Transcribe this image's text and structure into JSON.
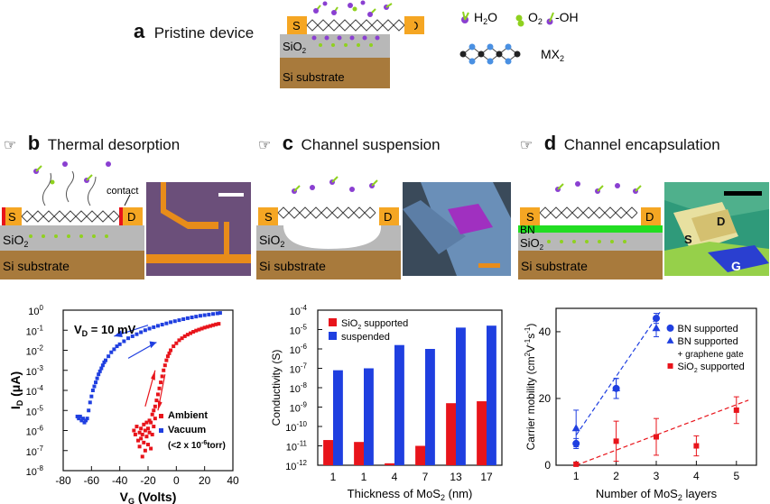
{
  "panel_a": {
    "letter": "a",
    "title": "Pristine device",
    "source": "S",
    "drain": "D",
    "oxide": "SiO",
    "oxide_sub": "2",
    "substrate": "Si substrate",
    "legend_h2o": "H",
    "legend_h2o_sub": "2",
    "legend_h2o_end": "O",
    "legend_o2": "O",
    "legend_o2_sub": "2",
    "legend_oh": "-OH",
    "legend_mx2": "MX",
    "legend_mx2_sub": "2"
  },
  "panel_b": {
    "letter": "b",
    "title": "Thermal desorption",
    "source": "S",
    "drain": "D",
    "oxide": "SiO",
    "oxide_sub": "2",
    "substrate": "Si substrate",
    "contact_label": "contact"
  },
  "panel_c": {
    "letter": "c",
    "title": "Channel suspension",
    "source": "S",
    "drain": "D",
    "oxide": "SiO",
    "oxide_sub": "2",
    "substrate": "Si substrate"
  },
  "panel_d": {
    "letter": "d",
    "title": "Channel encapsulation",
    "source": "S",
    "drain": "D",
    "bn": "BN",
    "oxide": "SiO",
    "oxide_sub": "2",
    "substrate": "Si substrate",
    "photo_s": "S",
    "photo_d": "D",
    "photo_g": "G"
  },
  "colors": {
    "electrode": "#f5a623",
    "oxide": "#b8b8b8",
    "substrate": "#a87a3c",
    "mos2_top": "#4a90e2",
    "mos2_mid": "#222222",
    "adsorbate_purple": "#8a3fd1",
    "adsorbate_green": "#8fd11f",
    "bn": "#22dd22",
    "red": "#e8141b",
    "blue": "#1f3fe0"
  },
  "chart_data": [
    {
      "type": "scatter",
      "title": "",
      "annotation": "V",
      "annotation_sub": "D",
      "annotation_end": " = 10 mV",
      "xlabel": "V",
      "xlabel_sub": "G",
      "xlabel_end": " (Volts)",
      "ylabel": "I",
      "ylabel_sub": "D",
      "ylabel_end": " (μA)",
      "x_ticks": [
        "-80",
        "-60",
        "-40",
        "-20",
        "0",
        "20",
        "40"
      ],
      "xlim": [
        -80,
        40
      ],
      "y_ticks_mant": [
        "10",
        "10",
        "10",
        "10",
        "10",
        "10",
        "10",
        "10",
        "10"
      ],
      "y_ticks_exp": [
        "0",
        "-1",
        "-2",
        "-3",
        "-4",
        "-5",
        "-6",
        "-7",
        "-8"
      ],
      "ylim_log10": [
        -8,
        0
      ],
      "legend": [
        {
          "name": "Ambient",
          "color": "#e8141b"
        },
        {
          "name": "Vacuum",
          "color": "#1f3fe0"
        },
        {
          "name": "(<2 x 10",
          "exp": "-6",
          "end": "torr)"
        }
      ],
      "series": [
        {
          "name": "Vacuum",
          "color": "#1f3fe0",
          "x": [
            -70,
            -69,
            -68,
            -67,
            -66,
            -65,
            -64,
            -63,
            -62,
            -61,
            -60,
            -59,
            -58,
            -57,
            -56,
            -55,
            -54,
            -53,
            -52,
            -51,
            -50,
            -48,
            -46,
            -44,
            -42,
            -40,
            -37,
            -34,
            -31,
            -28,
            -25,
            -22,
            -19,
            -16,
            -13,
            -10,
            -7,
            -4,
            -1,
            2,
            5,
            8,
            11,
            14,
            17,
            20,
            23,
            26,
            29,
            31
          ],
          "logy": [
            -5.3,
            -5.4,
            -5.3,
            -5.5,
            -5.4,
            -5.6,
            -5.5,
            -5.4,
            -5.0,
            -4.6,
            -4.3,
            -4.0,
            -3.8,
            -3.6,
            -3.4,
            -3.2,
            -3.05,
            -2.9,
            -2.75,
            -2.6,
            -2.5,
            -2.3,
            -2.1,
            -1.95,
            -1.8,
            -1.7,
            -1.55,
            -1.4,
            -1.3,
            -1.2,
            -1.1,
            -1.0,
            -0.92,
            -0.85,
            -0.78,
            -0.72,
            -0.66,
            -0.6,
            -0.55,
            -0.5,
            -0.45,
            -0.4,
            -0.36,
            -0.32,
            -0.28,
            -0.25,
            -0.22,
            -0.19,
            -0.16,
            -0.14
          ]
        },
        {
          "name": "Ambient",
          "color": "#e8141b",
          "x": [
            -30,
            -29,
            -28,
            -27,
            -26,
            -26,
            -25,
            -25,
            -24,
            -24,
            -23,
            -23,
            -22,
            -22,
            -21,
            -21,
            -20,
            -20,
            -19,
            -19,
            -18,
            -18,
            -17,
            -17,
            -16,
            -16,
            -15,
            -15,
            -14,
            -13,
            -12,
            -11,
            -10,
            -9,
            -8,
            -7,
            -6,
            -5,
            -4,
            -2,
            0,
            2,
            4,
            6,
            8,
            10,
            12,
            14,
            16,
            18,
            20,
            22,
            24,
            26,
            28,
            30
          ],
          "logy": [
            -6.0,
            -6.2,
            -5.8,
            -6.5,
            -6.1,
            -6.8,
            -5.9,
            -6.4,
            -6.2,
            -7.3,
            -5.7,
            -6.6,
            -6.0,
            -7.0,
            -5.6,
            -6.3,
            -5.9,
            -6.7,
            -5.5,
            -6.1,
            -5.6,
            -6.9,
            -5.2,
            -6.2,
            -5.0,
            -5.8,
            -4.8,
            -5.4,
            -4.5,
            -4.2,
            -3.9,
            -3.6,
            -3.3,
            -3.0,
            -2.75,
            -2.5,
            -2.3,
            -2.15,
            -2.0,
            -1.8,
            -1.65,
            -1.5,
            -1.4,
            -1.3,
            -1.22,
            -1.15,
            -1.08,
            -1.02,
            -0.97,
            -0.92,
            -0.87,
            -0.83,
            -0.79,
            -0.75,
            -0.71,
            -0.68
          ]
        }
      ]
    },
    {
      "type": "bar",
      "title": "",
      "xlabel": "Thickness of MoS",
      "xlabel_sub": "2",
      "xlabel_end": "  (nm)",
      "ylabel": "Conductivity (S)",
      "categories": [
        "1",
        "1",
        "4",
        "7",
        "13",
        "17"
      ],
      "y_ticks_mant": [
        "10",
        "10",
        "10",
        "10",
        "10",
        "10",
        "10",
        "10",
        "10"
      ],
      "y_ticks_exp": [
        "-4",
        "-5",
        "-6",
        "-7",
        "-8",
        "-9",
        "-10",
        "-11",
        "-12"
      ],
      "ylim_log10": [
        -12,
        -4
      ],
      "legend": [
        {
          "name": "SiO",
          "sub": "2",
          "end": " supported",
          "color": "#e8141b"
        },
        {
          "name": "suspended",
          "color": "#1f3fe0"
        }
      ],
      "series": [
        {
          "name": "SiO2 supported",
          "color": "#e8141b",
          "logvalues": [
            -10.7,
            -10.8,
            -11.9,
            -11.0,
            -8.8,
            -8.7
          ]
        },
        {
          "name": "suspended",
          "color": "#1f3fe0",
          "logvalues": [
            -7.1,
            -7.0,
            -5.8,
            -6.0,
            -4.9,
            -4.8
          ]
        }
      ]
    },
    {
      "type": "scatter",
      "title": "",
      "xlabel": "Number of MoS",
      "xlabel_sub": "2",
      "xlabel_end": " layers",
      "ylabel": "Carrier mobility (cm",
      "ylabel_sup": "2",
      "ylabel_mid": "V",
      "ylabel_sup2": "-1",
      "ylabel_mid2": "s",
      "ylabel_sup3": "-1",
      "ylabel_end": ")",
      "x_ticks": [
        "1",
        "2",
        "3",
        "4",
        "5"
      ],
      "xlim": [
        0.5,
        5.5
      ],
      "y_ticks": [
        "0",
        "20",
        "40"
      ],
      "ylim": [
        0,
        47
      ],
      "legend": [
        {
          "name": "BN supported",
          "marker": "circle",
          "color": "#1f3fe0"
        },
        {
          "name": "BN supported",
          "marker": "triangle",
          "color": "#1f3fe0"
        },
        {
          "name": "+ graphene gate",
          "marker": "none",
          "color": "#111111"
        },
        {
          "name": "SiO",
          "sub": "2",
          "end": " supported",
          "marker": "square",
          "color": "#e8141b"
        }
      ],
      "series": [
        {
          "name": "BN supported (circle)",
          "color": "#1f3fe0",
          "x": [
            1,
            2,
            3
          ],
          "y": [
            6.5,
            23,
            44
          ],
          "err": [
            1.5,
            3,
            1.5
          ]
        },
        {
          "name": "BN supported + graphene gate (triangle)",
          "color": "#1f3fe0",
          "x": [
            1,
            2,
            3
          ],
          "y": [
            11,
            23,
            41
          ],
          "err": [
            5.5,
            3,
            2.5
          ]
        },
        {
          "name": "SiO2 supported",
          "color": "#e8141b",
          "x": [
            1,
            2,
            3,
            4,
            5
          ],
          "y": [
            0.3,
            7.2,
            8.5,
            5.8,
            16.5
          ],
          "err": [
            0.5,
            6,
            5.5,
            3,
            4
          ]
        }
      ]
    }
  ]
}
